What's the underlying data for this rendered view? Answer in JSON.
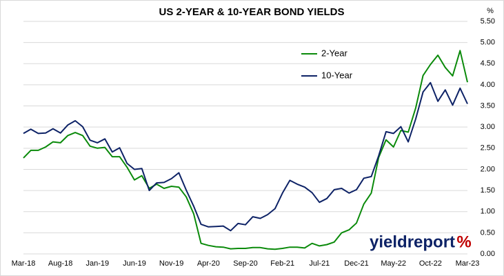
{
  "chart_data": {
    "type": "line",
    "title": "US 2-YEAR & 10-YEAR BOND YIELDS",
    "y_axis_label": "%",
    "categories": [
      "Mar-18",
      null,
      null,
      null,
      null,
      "Aug-18",
      null,
      null,
      null,
      null,
      "Jan-19",
      null,
      null,
      null,
      null,
      "Jun-19",
      null,
      null,
      null,
      null,
      "Nov-19",
      null,
      null,
      null,
      null,
      "Apr-20",
      null,
      null,
      null,
      null,
      "Sep-20",
      null,
      null,
      null,
      null,
      "Feb-21",
      null,
      null,
      null,
      null,
      "Jul-21",
      null,
      null,
      null,
      null,
      "Dec-21",
      null,
      null,
      null,
      null,
      "May-22",
      null,
      null,
      null,
      null,
      "Oct-22",
      null,
      null,
      null,
      null,
      "Mar-23"
    ],
    "series": [
      {
        "name": "2-Year",
        "color": "#0a8a0a",
        "values": [
          2.27,
          2.45,
          2.45,
          2.53,
          2.65,
          2.63,
          2.8,
          2.87,
          2.8,
          2.55,
          2.5,
          2.52,
          2.3,
          2.3,
          2.05,
          1.75,
          1.85,
          1.55,
          1.65,
          1.55,
          1.6,
          1.58,
          1.35,
          0.95,
          0.25,
          0.2,
          0.17,
          0.16,
          0.12,
          0.13,
          0.13,
          0.15,
          0.15,
          0.12,
          0.11,
          0.13,
          0.16,
          0.16,
          0.14,
          0.25,
          0.19,
          0.22,
          0.28,
          0.5,
          0.57,
          0.73,
          1.18,
          1.44,
          2.28,
          2.7,
          2.53,
          2.92,
          2.88,
          3.45,
          4.22,
          4.48,
          4.7,
          4.41,
          4.21,
          4.81,
          4.06
        ]
      },
      {
        "name": "10-Year",
        "color": "#0d2266",
        "values": [
          2.85,
          2.95,
          2.85,
          2.86,
          2.96,
          2.86,
          3.05,
          3.15,
          3.01,
          2.69,
          2.63,
          2.72,
          2.41,
          2.51,
          2.14,
          2.0,
          2.02,
          1.5,
          1.68,
          1.69,
          1.78,
          1.92,
          1.51,
          1.13,
          0.7,
          0.64,
          0.65,
          0.66,
          0.55,
          0.72,
          0.69,
          0.88,
          0.84,
          0.93,
          1.07,
          1.44,
          1.74,
          1.65,
          1.58,
          1.45,
          1.22,
          1.31,
          1.52,
          1.55,
          1.44,
          1.52,
          1.79,
          1.83,
          2.32,
          2.89,
          2.85,
          3.01,
          2.65,
          3.19,
          3.83,
          4.05,
          3.61,
          3.88,
          3.52,
          3.92,
          3.55
        ]
      }
    ],
    "ylim": [
      0,
      5.5
    ],
    "yticks": [
      {
        "value": 0,
        "label": "0.00"
      },
      {
        "value": 0.5,
        "label": "0.50"
      },
      {
        "value": 1,
        "label": "1.00"
      },
      {
        "value": 1.5,
        "label": "1.50"
      },
      {
        "value": 2,
        "label": "2.00"
      },
      {
        "value": 2.5,
        "label": "2.50"
      },
      {
        "value": 3,
        "label": "3.00"
      },
      {
        "value": 3.5,
        "label": "3.50"
      },
      {
        "value": 4,
        "label": "4.00"
      },
      {
        "value": 4.5,
        "label": "4.50"
      },
      {
        "value": 5,
        "label": "5.00"
      },
      {
        "value": 5.5,
        "label": "5.50"
      }
    ],
    "grid": true,
    "watermark": {
      "text": "yieldreport",
      "symbol": "%"
    }
  }
}
